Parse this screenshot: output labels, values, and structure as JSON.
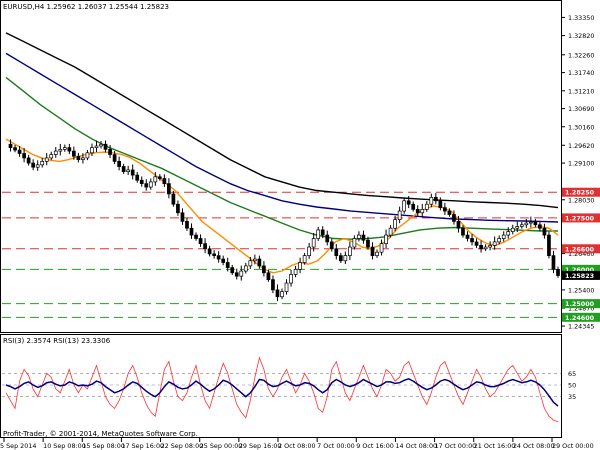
{
  "header": {
    "symbol_line": "EURUSD,H4  1.25962 1.26037 1.25544 1.25823"
  },
  "indicator": {
    "label": "RSI(3) 2.3574  RSI(13) 23.3306"
  },
  "copyright": "Profit-Trader, © 2001-2014, MetaQuotes Software Corp.",
  "colors": {
    "candles": "#000000",
    "ma_fast": "#ff8c00",
    "ma_mid": "#1e7a1e",
    "ma_slow": "#000080",
    "ma_slowest": "#000000",
    "resistance": "#e03030",
    "support": "#20a020",
    "rsi_fast": "#ff3030",
    "rsi_slow": "#000080",
    "current_price_tag": "#000000"
  },
  "chart_data": {
    "type": "candlestick",
    "price_axis_labels": [
      "1.33350",
      "1.32820",
      "1.32260",
      "1.31740",
      "1.31210",
      "1.30690",
      "1.30160",
      "1.29620",
      "1.29100",
      "1.28030",
      "1.26460",
      "1.25920",
      "1.25400",
      "1.24870",
      "1.24345"
    ],
    "time_axis_labels": [
      "5 Sep 2014",
      "10 Sep 08:00",
      "15 Sep 08:00",
      "17 Sep 16:00",
      "22 Sep 08:00",
      "25 Sep 00:00",
      "29 Sep 16:00",
      "2 Oct 08:00",
      "7 Oct 00:00",
      "9 Oct 16:00",
      "14 Oct 08:00",
      "17 Oct 00:00",
      "21 Oct 16:00",
      "24 Oct 08:00",
      "29 Oct 00:00"
    ],
    "ylim": [
      1.2423,
      1.3345
    ],
    "close_series": [
      1.2965,
      1.2955,
      1.2948,
      1.2938,
      1.2925,
      1.291,
      1.2898,
      1.2905,
      1.2915,
      1.2925,
      1.2935,
      1.2945,
      1.295,
      1.2955,
      1.2945,
      1.293,
      1.292,
      1.2925,
      1.294,
      1.2955,
      1.296,
      1.2965,
      1.295,
      1.2935,
      1.2915,
      1.29,
      1.2885,
      1.289,
      1.2875,
      1.286,
      1.285,
      1.284,
      1.2855,
      1.287,
      1.2865,
      1.285,
      1.282,
      1.279,
      1.2765,
      1.274,
      1.272,
      1.27,
      1.269,
      1.2675,
      1.266,
      1.2645,
      1.264,
      1.263,
      1.262,
      1.2605,
      1.259,
      1.258,
      1.2595,
      1.261,
      1.2625,
      1.263,
      1.261,
      1.259,
      1.257,
      1.254,
      1.252,
      1.2535,
      1.256,
      1.2585,
      1.26,
      1.262,
      1.264,
      1.2665,
      1.269,
      1.2715,
      1.27,
      1.268,
      1.266,
      1.264,
      1.2625,
      1.264,
      1.2665,
      1.269,
      1.27,
      1.2685,
      1.2665,
      1.264,
      1.265,
      1.2675,
      1.27,
      1.272,
      1.2745,
      1.277,
      1.28,
      1.279,
      1.2775,
      1.2765,
      1.2775,
      1.279,
      1.281,
      1.28,
      1.278,
      1.277,
      1.276,
      1.274,
      1.272,
      1.27,
      1.269,
      1.268,
      1.267,
      1.266,
      1.2665,
      1.267,
      1.268,
      1.269,
      1.27,
      1.271,
      1.272,
      1.2725,
      1.273,
      1.2735,
      1.2738,
      1.273,
      1.272,
      1.27,
      1.264,
      1.26,
      1.2582
    ],
    "ma_fast": [
      1.298,
      1.2965,
      1.295,
      1.2935,
      1.2925,
      1.2918,
      1.2915,
      1.292,
      1.2928,
      1.2935,
      1.294,
      1.2942,
      1.294,
      1.2935,
      1.2925,
      1.291,
      1.289,
      1.287,
      1.285,
      1.283,
      1.28,
      1.277,
      1.274,
      1.272,
      1.27,
      1.268,
      1.266,
      1.264,
      1.262,
      1.26,
      1.259,
      1.2595,
      1.261,
      1.262,
      1.2615,
      1.2625,
      1.265,
      1.268,
      1.269,
      1.268,
      1.2665,
      1.266,
      1.267,
      1.269,
      1.272,
      1.274,
      1.276,
      1.2775,
      1.2785,
      1.278,
      1.277,
      1.274,
      1.271,
      1.269,
      1.2675,
      1.267,
      1.268,
      1.2695,
      1.271,
      1.272,
      1.2725,
      1.272,
      1.27
    ],
    "ma_mid": [
      1.316,
      1.312,
      1.308,
      1.3045,
      1.301,
      1.298,
      1.2955,
      1.2935,
      1.2915,
      1.2895,
      1.287,
      1.2845,
      1.282,
      1.2795,
      1.2775,
      1.2755,
      1.2735,
      1.2715,
      1.27,
      1.269,
      1.2688,
      1.269,
      1.2695,
      1.2705,
      1.2715,
      1.272,
      1.2722,
      1.272,
      1.2718,
      1.2716,
      1.2714,
      1.2712,
      1.2712
    ],
    "ma_slow": [
      1.323,
      1.32,
      1.317,
      1.314,
      1.311,
      1.308,
      1.305,
      1.302,
      1.299,
      1.296,
      1.293,
      1.29,
      1.2875,
      1.285,
      1.283,
      1.2815,
      1.28,
      1.279,
      1.2782,
      1.2776,
      1.277,
      1.2766,
      1.2762,
      1.2758,
      1.2754,
      1.275,
      1.2747,
      1.2745,
      1.2743,
      1.2742,
      1.2741,
      1.274,
      1.2738
    ],
    "ma_slowest": [
      1.329,
      1.3265,
      1.324,
      1.3215,
      1.319,
      1.316,
      1.313,
      1.31,
      1.307,
      1.304,
      1.301,
      1.298,
      1.295,
      1.292,
      1.2895,
      1.287,
      1.2855,
      1.284,
      1.283,
      1.2825,
      1.282,
      1.2815,
      1.2812,
      1.2808,
      1.2805,
      1.2802,
      1.28,
      1.2797,
      1.2795,
      1.2793,
      1.279,
      1.2786,
      1.278
    ],
    "horizontal_levels": [
      {
        "label": "1.28250",
        "value": 1.2825,
        "kind": "resistance"
      },
      {
        "label": "1.27500",
        "value": 1.275,
        "kind": "resistance"
      },
      {
        "label": "1.26600",
        "value": 1.266,
        "kind": "resistance"
      },
      {
        "label": "1.26000",
        "value": 1.26,
        "kind": "support"
      },
      {
        "label": "1.25823",
        "value": 1.25823,
        "kind": "current"
      },
      {
        "label": "1.25000",
        "value": 1.25,
        "kind": "support"
      },
      {
        "label": "1.24600",
        "value": 1.246,
        "kind": "support"
      }
    ],
    "rsi_axis_labels": [
      "65",
      "50",
      "35"
    ],
    "rsi_levels": [
      65,
      50,
      35
    ],
    "rsi_fast": [
      40,
      30,
      20,
      55,
      70,
      62,
      45,
      35,
      50,
      65,
      60,
      45,
      40,
      55,
      70,
      50,
      40,
      50,
      45,
      60,
      75,
      55,
      35,
      25,
      20,
      30,
      45,
      65,
      75,
      60,
      40,
      25,
      15,
      10,
      40,
      70,
      80,
      55,
      35,
      30,
      40,
      60,
      75,
      50,
      30,
      20,
      40,
      60,
      78,
      65,
      45,
      25,
      15,
      8,
      30,
      60,
      85,
      70,
      45,
      35,
      45,
      60,
      70,
      55,
      40,
      50,
      65,
      55,
      40,
      20,
      15,
      35,
      70,
      80,
      60,
      40,
      30,
      45,
      60,
      75,
      60,
      45,
      35,
      50,
      70,
      65,
      55,
      60,
      75,
      80,
      65,
      50,
      35,
      25,
      40,
      60,
      75,
      80,
      65,
      50,
      35,
      25,
      40,
      55,
      70,
      60,
      45,
      35,
      40,
      50,
      60,
      70,
      75,
      65,
      55,
      60,
      70,
      60,
      40,
      20,
      10,
      5,
      3
    ],
    "rsi_slow": [
      50,
      48,
      45,
      48,
      52,
      54,
      50,
      47,
      49,
      53,
      54,
      51,
      49,
      50,
      54,
      52,
      49,
      50,
      49,
      51,
      55,
      53,
      48,
      44,
      40,
      42,
      45,
      50,
      54,
      52,
      47,
      42,
      38,
      35,
      40,
      48,
      54,
      51,
      47,
      45,
      46,
      50,
      55,
      51,
      46,
      42,
      45,
      50,
      56,
      54,
      50,
      45,
      40,
      35,
      40,
      48,
      57,
      56,
      51,
      48,
      49,
      52,
      55,
      52,
      49,
      50,
      53,
      52,
      49,
      44,
      40,
      44,
      53,
      57,
      54,
      50,
      48,
      50,
      53,
      57,
      54,
      51,
      48,
      50,
      54,
      54,
      52,
      53,
      56,
      58,
      55,
      51,
      47,
      44,
      46,
      50,
      55,
      57,
      55,
      51,
      47,
      44,
      46,
      50,
      54,
      53,
      50,
      48,
      48,
      50,
      52,
      55,
      57,
      55,
      53,
      54,
      56,
      54,
      50,
      44,
      36,
      28,
      23
    ]
  }
}
